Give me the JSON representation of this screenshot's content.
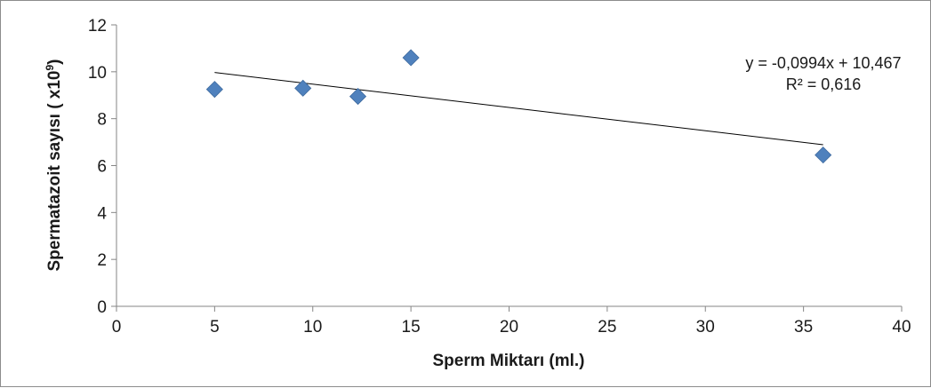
{
  "chart_data": {
    "type": "scatter",
    "xlabel": "Sperm Miktarı (ml.)",
    "ylabel": "Spermatazoit sayısı ( x10",
    "ylabel_sup": "9",
    "ylabel_end": ")",
    "xlim": [
      0,
      40
    ],
    "ylim": [
      0,
      12
    ],
    "x_ticks": [
      0,
      5,
      10,
      15,
      20,
      25,
      30,
      35,
      40
    ],
    "y_ticks": [
      0,
      2,
      4,
      6,
      8,
      10,
      12
    ],
    "grid": false,
    "marker_color": "#4f81bd",
    "trendline_color": "#000000",
    "series": [
      {
        "x": [
          5,
          9.5,
          12.3,
          15,
          36
        ],
        "y": [
          9.25,
          9.3,
          8.95,
          10.6,
          6.45
        ]
      }
    ],
    "trendline": {
      "slope": -0.0994,
      "intercept": 10.467,
      "x_range": [
        5,
        36
      ]
    },
    "annotations": {
      "equation": "y = -0,0994x + 10,467",
      "r_squared": "R² = 0,616"
    }
  }
}
